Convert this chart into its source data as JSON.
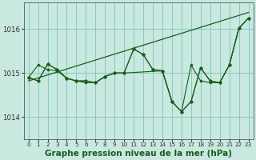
{
  "bg_color": "#c8e8e0",
  "grid_color": "#88ccbb",
  "line_color": "#1a5c1a",
  "xlabel": "Graphe pression niveau de la mer (hPa)",
  "xlabel_fontsize": 7.5,
  "xlim": [
    -0.5,
    23.5
  ],
  "ylim": [
    1013.5,
    1016.6
  ],
  "yticks": [
    1014,
    1015,
    1016
  ],
  "xticks": [
    0,
    1,
    2,
    3,
    4,
    5,
    6,
    7,
    8,
    9,
    10,
    11,
    12,
    13,
    14,
    15,
    16,
    17,
    18,
    19,
    20,
    21,
    22,
    23
  ],
  "trend_x": [
    0,
    23
  ],
  "trend_y": [
    1014.82,
    1016.38
  ],
  "series1": [
    1014.9,
    1014.82,
    1015.2,
    1015.08,
    1014.88,
    1014.82,
    1014.82,
    1014.78,
    1014.92,
    1015.0,
    1015.0,
    1015.55,
    1015.42,
    1015.08,
    1015.05,
    1014.35,
    1014.12,
    1014.35,
    1015.12,
    1014.82,
    1014.78,
    1015.18,
    1016.02,
    1016.25
  ],
  "series2": [
    1014.9,
    1015.18,
    1015.08,
    1015.05,
    1014.88,
    1014.82,
    1014.78,
    1014.78,
    1014.92,
    1015.0,
    1015.0,
    1015.55,
    1015.42,
    1015.08,
    1015.05,
    1014.35,
    1014.12,
    1015.18,
    1014.82,
    1014.78,
    1014.78,
    1015.18,
    1016.02,
    1016.25
  ],
  "series3_x": [
    0,
    1,
    2,
    3,
    4,
    5,
    6,
    7,
    8,
    9,
    10,
    14,
    15,
    16,
    17,
    18,
    19,
    20,
    21,
    22,
    23
  ],
  "series3": [
    1014.9,
    1014.82,
    1015.2,
    1015.08,
    1014.88,
    1014.82,
    1014.82,
    1014.78,
    1014.92,
    1015.0,
    1015.0,
    1015.05,
    1014.35,
    1014.12,
    1014.35,
    1015.12,
    1014.82,
    1014.78,
    1015.18,
    1016.02,
    1016.25
  ]
}
